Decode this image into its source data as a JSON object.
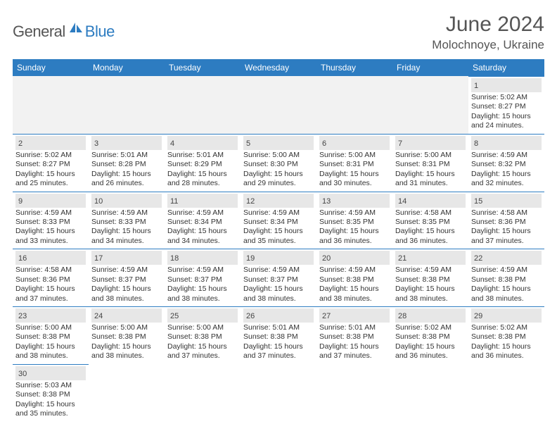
{
  "brand": {
    "part1": "General",
    "part2": "Blue"
  },
  "title": "June 2024",
  "location": "Molochnoye, Ukraine",
  "colors": {
    "header_bg": "#2d7cc1",
    "header_text": "#ffffff",
    "daynum_bg": "#e7e7e7",
    "cell_border": "#2d7cc1",
    "brand_gray": "#555555",
    "brand_blue": "#2d7cc1"
  },
  "weekdays": [
    "Sunday",
    "Monday",
    "Tuesday",
    "Wednesday",
    "Thursday",
    "Friday",
    "Saturday"
  ],
  "layout": {
    "first_weekday_index": 6,
    "days_in_month": 30
  },
  "days": {
    "1": {
      "sunrise": "5:02 AM",
      "sunset": "8:27 PM",
      "daylight_h": 15,
      "daylight_m": 24
    },
    "2": {
      "sunrise": "5:02 AM",
      "sunset": "8:27 PM",
      "daylight_h": 15,
      "daylight_m": 25
    },
    "3": {
      "sunrise": "5:01 AM",
      "sunset": "8:28 PM",
      "daylight_h": 15,
      "daylight_m": 26
    },
    "4": {
      "sunrise": "5:01 AM",
      "sunset": "8:29 PM",
      "daylight_h": 15,
      "daylight_m": 28
    },
    "5": {
      "sunrise": "5:00 AM",
      "sunset": "8:30 PM",
      "daylight_h": 15,
      "daylight_m": 29
    },
    "6": {
      "sunrise": "5:00 AM",
      "sunset": "8:31 PM",
      "daylight_h": 15,
      "daylight_m": 30
    },
    "7": {
      "sunrise": "5:00 AM",
      "sunset": "8:31 PM",
      "daylight_h": 15,
      "daylight_m": 31
    },
    "8": {
      "sunrise": "4:59 AM",
      "sunset": "8:32 PM",
      "daylight_h": 15,
      "daylight_m": 32
    },
    "9": {
      "sunrise": "4:59 AM",
      "sunset": "8:33 PM",
      "daylight_h": 15,
      "daylight_m": 33
    },
    "10": {
      "sunrise": "4:59 AM",
      "sunset": "8:33 PM",
      "daylight_h": 15,
      "daylight_m": 34
    },
    "11": {
      "sunrise": "4:59 AM",
      "sunset": "8:34 PM",
      "daylight_h": 15,
      "daylight_m": 34
    },
    "12": {
      "sunrise": "4:59 AM",
      "sunset": "8:34 PM",
      "daylight_h": 15,
      "daylight_m": 35
    },
    "13": {
      "sunrise": "4:59 AM",
      "sunset": "8:35 PM",
      "daylight_h": 15,
      "daylight_m": 36
    },
    "14": {
      "sunrise": "4:58 AM",
      "sunset": "8:35 PM",
      "daylight_h": 15,
      "daylight_m": 36
    },
    "15": {
      "sunrise": "4:58 AM",
      "sunset": "8:36 PM",
      "daylight_h": 15,
      "daylight_m": 37
    },
    "16": {
      "sunrise": "4:58 AM",
      "sunset": "8:36 PM",
      "daylight_h": 15,
      "daylight_m": 37
    },
    "17": {
      "sunrise": "4:59 AM",
      "sunset": "8:37 PM",
      "daylight_h": 15,
      "daylight_m": 38
    },
    "18": {
      "sunrise": "4:59 AM",
      "sunset": "8:37 PM",
      "daylight_h": 15,
      "daylight_m": 38
    },
    "19": {
      "sunrise": "4:59 AM",
      "sunset": "8:37 PM",
      "daylight_h": 15,
      "daylight_m": 38
    },
    "20": {
      "sunrise": "4:59 AM",
      "sunset": "8:38 PM",
      "daylight_h": 15,
      "daylight_m": 38
    },
    "21": {
      "sunrise": "4:59 AM",
      "sunset": "8:38 PM",
      "daylight_h": 15,
      "daylight_m": 38
    },
    "22": {
      "sunrise": "4:59 AM",
      "sunset": "8:38 PM",
      "daylight_h": 15,
      "daylight_m": 38
    },
    "23": {
      "sunrise": "5:00 AM",
      "sunset": "8:38 PM",
      "daylight_h": 15,
      "daylight_m": 38
    },
    "24": {
      "sunrise": "5:00 AM",
      "sunset": "8:38 PM",
      "daylight_h": 15,
      "daylight_m": 38
    },
    "25": {
      "sunrise": "5:00 AM",
      "sunset": "8:38 PM",
      "daylight_h": 15,
      "daylight_m": 37
    },
    "26": {
      "sunrise": "5:01 AM",
      "sunset": "8:38 PM",
      "daylight_h": 15,
      "daylight_m": 37
    },
    "27": {
      "sunrise": "5:01 AM",
      "sunset": "8:38 PM",
      "daylight_h": 15,
      "daylight_m": 37
    },
    "28": {
      "sunrise": "5:02 AM",
      "sunset": "8:38 PM",
      "daylight_h": 15,
      "daylight_m": 36
    },
    "29": {
      "sunrise": "5:02 AM",
      "sunset": "8:38 PM",
      "daylight_h": 15,
      "daylight_m": 36
    },
    "30": {
      "sunrise": "5:03 AM",
      "sunset": "8:38 PM",
      "daylight_h": 15,
      "daylight_m": 35
    }
  },
  "labels": {
    "sunrise": "Sunrise: ",
    "sunset": "Sunset: ",
    "daylight_prefix": "Daylight: ",
    "hours_word": " hours",
    "and_word": "and ",
    "minutes_word": " minutes."
  }
}
